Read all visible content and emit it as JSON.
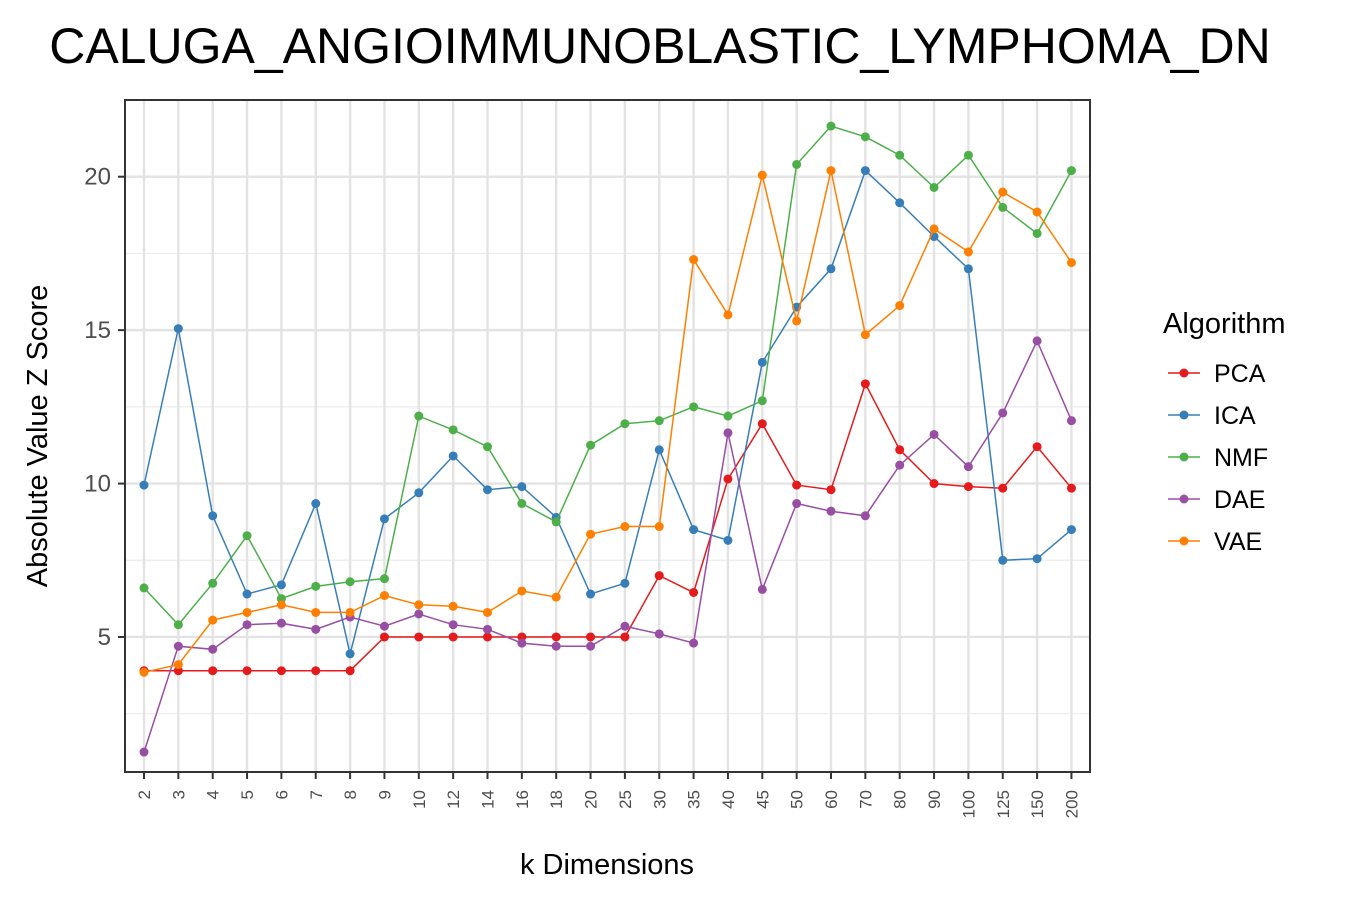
{
  "chart_data": {
    "type": "line",
    "title": "CALUGA_ANGIOIMMUNOBLASTIC_LYMPHOMA_DN",
    "xlabel": "k Dimensions",
    "ylabel": "Absolute Value Z Score",
    "categories": [
      "2",
      "3",
      "4",
      "5",
      "6",
      "7",
      "8",
      "9",
      "10",
      "12",
      "14",
      "16",
      "18",
      "20",
      "25",
      "30",
      "35",
      "40",
      "45",
      "50",
      "60",
      "70",
      "80",
      "90",
      "100",
      "125",
      "150",
      "200"
    ],
    "yticks": [
      5,
      10,
      15,
      20
    ],
    "ylim": [
      0.6,
      22.5
    ],
    "grid": true,
    "legend": {
      "title": "Algorithm",
      "position": "right"
    },
    "series": [
      {
        "name": "PCA",
        "color": "#e41a1c",
        "values": [
          3.9,
          3.9,
          3.9,
          3.9,
          3.9,
          3.9,
          3.9,
          5.0,
          5.0,
          5.0,
          5.0,
          5.0,
          5.0,
          5.0,
          5.0,
          7.0,
          6.45,
          10.15,
          11.95,
          9.95,
          9.8,
          13.25,
          11.1,
          10.0,
          9.9,
          9.85,
          11.2,
          9.85
        ]
      },
      {
        "name": "ICA",
        "color": "#377eb8",
        "values": [
          9.95,
          15.05,
          8.95,
          6.4,
          6.7,
          9.35,
          4.45,
          8.85,
          9.7,
          10.9,
          9.8,
          9.9,
          8.9,
          6.4,
          6.75,
          11.1,
          8.5,
          8.15,
          13.95,
          15.75,
          17.0,
          20.2,
          19.15,
          18.05,
          17.0,
          7.5,
          7.55,
          8.5
        ]
      },
      {
        "name": "NMF",
        "color": "#4daf4a",
        "values": [
          6.6,
          5.4,
          6.75,
          8.3,
          6.25,
          6.65,
          6.8,
          6.9,
          12.2,
          11.75,
          11.2,
          9.35,
          8.75,
          11.25,
          11.95,
          12.05,
          12.5,
          12.2,
          12.7,
          20.4,
          21.65,
          21.3,
          20.7,
          19.65,
          20.7,
          19.0,
          18.15,
          20.2
        ]
      },
      {
        "name": "DAE",
        "color": "#984ea3",
        "values": [
          1.25,
          4.7,
          4.6,
          5.4,
          5.45,
          5.25,
          5.65,
          5.35,
          5.75,
          5.4,
          5.25,
          4.8,
          4.7,
          4.7,
          5.35,
          5.1,
          4.8,
          11.65,
          6.55,
          9.35,
          9.1,
          8.95,
          10.6,
          11.6,
          10.55,
          12.3,
          14.65,
          12.05
        ]
      },
      {
        "name": "VAE",
        "color": "#ff7f00",
        "values": [
          3.85,
          4.1,
          5.55,
          5.8,
          6.05,
          5.8,
          5.8,
          6.35,
          6.05,
          6.0,
          5.8,
          6.5,
          6.3,
          8.35,
          8.6,
          8.6,
          17.3,
          15.5,
          20.05,
          15.3,
          20.2,
          14.85,
          15.8,
          18.3,
          17.55,
          19.5,
          18.85,
          17.2
        ]
      }
    ]
  }
}
